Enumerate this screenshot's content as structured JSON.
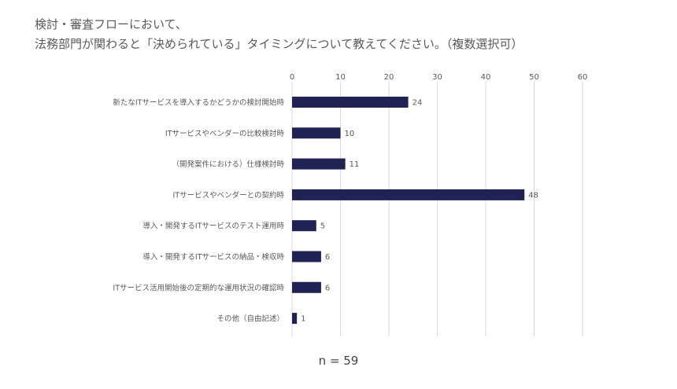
{
  "title_lines": [
    "検討・審査フローにおいて、",
    "法務部門が関わると「決められている」タイミングについて教えてください。（複数選択可）"
  ],
  "note": "n = 59",
  "chart_data": {
    "type": "bar",
    "orientation": "horizontal",
    "categories": [
      "新たなITサービスを導入するかどうかの検討開始時",
      "ITサービスやベンダーの比較検討時",
      "（開発案件における）仕様検討時",
      "ITサービスやベンダーとの契約時",
      "導入・開発するITサービスのテスト運用時",
      "導入・開発するITサービスの納品・検収時",
      "ITサービス活用開始後の定期的な運用状況の確認時",
      "その他（自由記述）"
    ],
    "values": [
      24,
      10,
      11,
      48,
      5,
      6,
      6,
      1
    ],
    "xlim": [
      0,
      60
    ],
    "xticks": [
      0,
      10,
      20,
      30,
      40,
      50,
      60
    ],
    "axis_position": "top",
    "grid": true,
    "data_labels": true,
    "colors": {
      "bar": "#1f2253",
      "grid": "#d9d9d9",
      "label": "#595959"
    }
  }
}
